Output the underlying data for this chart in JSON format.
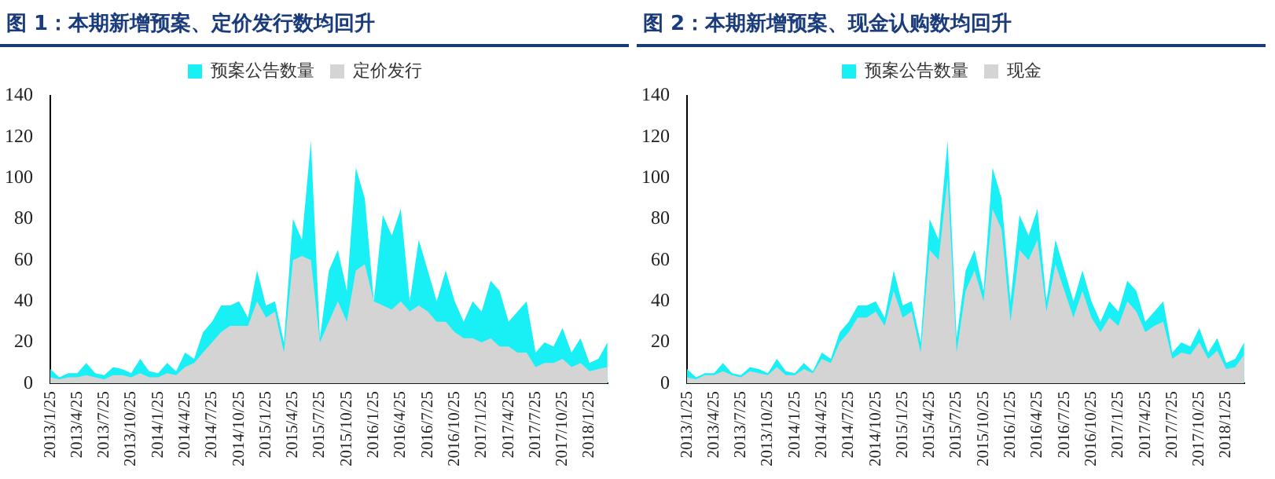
{
  "chart_data": [
    {
      "type": "area",
      "title": "图 1：本期新增预案、定价发行数均回升",
      "categories": [
        "2013/1/25",
        null,
        null,
        "2013/4/25",
        null,
        null,
        "2013/7/25",
        null,
        null,
        "2013/10/25",
        null,
        null,
        "2014/1/25",
        null,
        null,
        "2014/4/25",
        null,
        null,
        "2014/7/25",
        null,
        null,
        "2014/10/25",
        null,
        null,
        "2015/1/25",
        null,
        null,
        "2015/4/25",
        null,
        null,
        "2015/7/25",
        null,
        null,
        "2015/10/25",
        null,
        null,
        "2016/1/25",
        null,
        null,
        "2016/4/25",
        null,
        null,
        "2016/7/25",
        null,
        null,
        "2016/10/25",
        null,
        null,
        "2017/1/25",
        null,
        null,
        "2017/4/25",
        null,
        null,
        "2017/7/25",
        null,
        null,
        "2017/10/25",
        null,
        null,
        "2018/1/25",
        null,
        null
      ],
      "series": [
        {
          "name": "预案公告数量",
          "color": "#19f0f5",
          "values": [
            7,
            3,
            5,
            5,
            10,
            5,
            4,
            8,
            7,
            5,
            12,
            6,
            5,
            10,
            6,
            15,
            12,
            25,
            30,
            38,
            38,
            40,
            32,
            55,
            38,
            40,
            20,
            80,
            70,
            118,
            22,
            55,
            65,
            45,
            105,
            90,
            40,
            82,
            72,
            85,
            40,
            70,
            55,
            40,
            55,
            40,
            30,
            40,
            35,
            50,
            45,
            30,
            35,
            40,
            15,
            20,
            18,
            27,
            15,
            22,
            10,
            12,
            20
          ]
        },
        {
          "name": "定价发行",
          "color": "#d4d4d4",
          "values": [
            3,
            2,
            3,
            3,
            4,
            3,
            2,
            4,
            4,
            3,
            5,
            3,
            3,
            5,
            4,
            8,
            10,
            15,
            20,
            25,
            28,
            28,
            28,
            40,
            32,
            35,
            15,
            60,
            62,
            60,
            20,
            30,
            40,
            30,
            55,
            58,
            40,
            38,
            36,
            40,
            35,
            38,
            35,
            30,
            30,
            25,
            22,
            22,
            20,
            22,
            18,
            18,
            15,
            15,
            8,
            10,
            10,
            12,
            8,
            10,
            6,
            7,
            8
          ]
        }
      ],
      "ylim": [
        0,
        140
      ],
      "yticks": [
        0,
        20,
        40,
        60,
        80,
        100,
        120,
        140
      ],
      "grid": false,
      "legend": "top"
    },
    {
      "type": "area",
      "title": "图 2：本期新增预案、现金认购数均回升",
      "categories": [
        "2013/1/25",
        null,
        null,
        "2013/4/25",
        null,
        null,
        "2013/7/25",
        null,
        null,
        "2013/10/25",
        null,
        null,
        "2014/1/25",
        null,
        null,
        "2014/4/25",
        null,
        null,
        "2014/7/25",
        null,
        null,
        "2014/10/25",
        null,
        null,
        "2015/1/25",
        null,
        null,
        "2015/4/25",
        null,
        null,
        "2015/7/25",
        null,
        null,
        "2015/10/25",
        null,
        null,
        "2016/1/25",
        null,
        null,
        "2016/4/25",
        null,
        null,
        "2016/7/25",
        null,
        null,
        "2016/10/25",
        null,
        null,
        "2017/1/25",
        null,
        null,
        "2017/4/25",
        null,
        null,
        "2017/7/25",
        null,
        null,
        "2017/10/25",
        null,
        null,
        "2018/1/25",
        null,
        null
      ],
      "series": [
        {
          "name": "预案公告数量",
          "color": "#19f0f5",
          "values": [
            7,
            3,
            5,
            5,
            10,
            5,
            4,
            8,
            7,
            5,
            12,
            6,
            5,
            10,
            6,
            15,
            12,
            25,
            30,
            38,
            38,
            40,
            32,
            55,
            38,
            40,
            20,
            80,
            70,
            118,
            22,
            55,
            65,
            45,
            105,
            90,
            40,
            82,
            72,
            85,
            40,
            70,
            55,
            40,
            55,
            40,
            30,
            40,
            35,
            50,
            45,
            30,
            35,
            40,
            15,
            20,
            18,
            27,
            15,
            22,
            10,
            12,
            20
          ]
        },
        {
          "name": "现金",
          "color": "#d4d4d4",
          "values": [
            3,
            2,
            4,
            4,
            6,
            4,
            3,
            6,
            5,
            4,
            8,
            4,
            4,
            7,
            5,
            12,
            10,
            20,
            25,
            32,
            32,
            35,
            28,
            45,
            32,
            35,
            15,
            65,
            60,
            100,
            15,
            45,
            55,
            40,
            85,
            75,
            30,
            65,
            60,
            70,
            35,
            58,
            45,
            32,
            45,
            32,
            25,
            32,
            28,
            40,
            35,
            25,
            28,
            30,
            12,
            15,
            14,
            20,
            12,
            16,
            7,
            8,
            14
          ]
        }
      ],
      "ylim": [
        0,
        140
      ],
      "yticks": [
        0,
        20,
        40,
        60,
        80,
        100,
        120,
        140
      ],
      "grid": false,
      "legend": "top"
    }
  ]
}
